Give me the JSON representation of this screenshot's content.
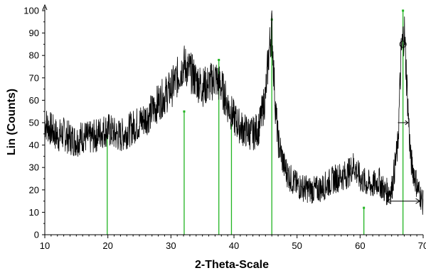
{
  "chart_data": {
    "type": "line",
    "title": "",
    "xlabel": "2-Theta-Scale",
    "ylabel": "Lin (Counts)",
    "xlim": [
      10,
      70
    ],
    "ylim": [
      0,
      100
    ],
    "x_ticks": [
      10,
      20,
      30,
      40,
      50,
      60,
      70
    ],
    "x_tick_labels": [
      "10",
      "20",
      "30",
      "40",
      "50",
      "60",
      "70"
    ],
    "y_ticks": [
      0,
      10,
      20,
      30,
      40,
      50,
      60,
      70,
      80,
      90,
      100
    ],
    "grid": false,
    "series": [
      {
        "color": "#000000",
        "x": [
          10,
          11,
          12,
          13,
          14,
          15,
          16,
          17,
          18,
          19,
          20,
          21,
          22,
          23,
          24,
          25,
          26,
          27,
          28,
          29,
          30,
          31,
          32,
          33,
          34,
          35,
          36,
          37,
          38,
          39,
          40,
          41,
          42,
          43,
          44,
          45,
          45.5,
          46,
          46.5,
          47,
          48,
          49,
          50,
          51,
          52,
          53,
          54,
          55,
          56,
          57,
          58,
          59,
          60,
          61,
          62,
          63,
          64,
          65,
          66,
          66.5,
          67,
          67.5,
          68,
          69,
          70
        ],
        "y": [
          50,
          47,
          44,
          45,
          43,
          42,
          44,
          43,
          44,
          46,
          47,
          45,
          44,
          46,
          48,
          50,
          52,
          55,
          59,
          62,
          65,
          70,
          76,
          73,
          69,
          66,
          67,
          70,
          66,
          58,
          52,
          48,
          46,
          45,
          48,
          62,
          80,
          93,
          60,
          42,
          30,
          25,
          22,
          21,
          20,
          20,
          21,
          23,
          25,
          26,
          27,
          31,
          25,
          23,
          22,
          24,
          19,
          20,
          40,
          80,
          92,
          62,
          34,
          22,
          14
        ]
      }
    ],
    "reference_lines": {
      "color": "#22b422",
      "markers": [
        {
          "x": 19.9,
          "y": 44
        },
        {
          "x": 32.1,
          "y": 55
        },
        {
          "x": 37.6,
          "y": 78
        },
        {
          "x": 39.6,
          "y": 49
        },
        {
          "x": 46.0,
          "y": 96
        },
        {
          "x": 60.6,
          "y": 12
        },
        {
          "x": 66.8,
          "y": 100
        }
      ]
    },
    "annotations": [
      {
        "type": "circle",
        "x": 66.8,
        "y": 85
      },
      {
        "type": "fwhm-marker",
        "x1": 66.0,
        "x2": 67.6,
        "y": 50
      },
      {
        "type": "baseline-arrow",
        "x1": 64.2,
        "x2": 69.5,
        "y": 15
      }
    ]
  }
}
